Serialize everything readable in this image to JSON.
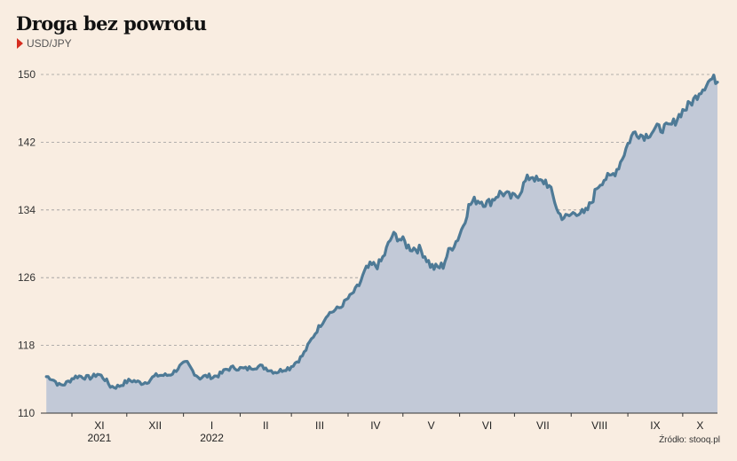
{
  "title": "Droga bez powrotu",
  "legend_label": "USD/JPY",
  "source": "Źródło: stooq.pl",
  "colors": {
    "line": "#4e7a96",
    "area": "#c2c9d7",
    "marker": "#d62d20",
    "background": "#f9ede1"
  },
  "chart_data": {
    "type": "area",
    "title": "Droga bez powrotu",
    "series": [
      {
        "name": "USD/JPY",
        "x": [
          "2021-10-18",
          "2021-10-25",
          "2021-11-01",
          "2021-11-08",
          "2021-11-15",
          "2021-11-22",
          "2021-11-29",
          "2021-12-06",
          "2021-12-13",
          "2021-12-20",
          "2021-12-27",
          "2022-01-03",
          "2022-01-10",
          "2022-01-17",
          "2022-01-24",
          "2022-01-31",
          "2022-02-07",
          "2022-02-14",
          "2022-02-21",
          "2022-02-28",
          "2022-03-07",
          "2022-03-14",
          "2022-03-21",
          "2022-03-28",
          "2022-04-04",
          "2022-04-11",
          "2022-04-18",
          "2022-04-25",
          "2022-05-02",
          "2022-05-09",
          "2022-05-16",
          "2022-05-23",
          "2022-05-30",
          "2022-06-06",
          "2022-06-13",
          "2022-06-20",
          "2022-06-27",
          "2022-07-04",
          "2022-07-11",
          "2022-07-18",
          "2022-07-25",
          "2022-08-01",
          "2022-08-08",
          "2022-08-15",
          "2022-08-22",
          "2022-08-29",
          "2022-09-05",
          "2022-09-12",
          "2022-09-19",
          "2022-09-26",
          "2022-10-03",
          "2022-10-10",
          "2022-10-17",
          "2022-10-20"
        ],
        "values": [
          114.2,
          113.4,
          114.0,
          114.3,
          114.6,
          113.2,
          113.5,
          113.7,
          113.9,
          114.4,
          115.0,
          115.8,
          114.3,
          114.1,
          115.3,
          115.1,
          115.6,
          115.2,
          115.1,
          115.1,
          117.0,
          119.2,
          122.0,
          122.3,
          124.5,
          126.5,
          128.0,
          130.5,
          130.5,
          129.1,
          127.8,
          127.2,
          130.5,
          134.2,
          135.2,
          135.3,
          135.8,
          136.1,
          138.0,
          137.5,
          133.5,
          133.6,
          133.2,
          136.9,
          137.5,
          140.5,
          142.9,
          143.3,
          143.2,
          144.7,
          145.6,
          148.4,
          149.0,
          149.2
        ],
        "minima": [
          113.0,
          112.8
        ],
        "maxima": [
          125.0,
          131.0,
          139.5,
          145.0
        ]
      }
    ],
    "x_tick_labels": [
      "XI",
      "XII",
      "I",
      "II",
      "III",
      "IV",
      "V",
      "VI",
      "VII",
      "VIII",
      "IX",
      "X"
    ],
    "x_tick_dates": [
      "2021-11-01",
      "2021-12-01",
      "2022-01-01",
      "2022-02-01",
      "2022-03-01",
      "2022-04-01",
      "2022-05-01",
      "2022-06-01",
      "2022-07-01",
      "2022-08-01",
      "2022-09-01",
      "2022-10-01"
    ],
    "x_year_labels": [
      {
        "label": "2021",
        "date": "2021-11-01"
      },
      {
        "label": "2022",
        "date": "2022-01-01"
      }
    ],
    "x_range": [
      "2021-10-15",
      "2022-10-20"
    ],
    "y_ticks": [
      110,
      118,
      126,
      134,
      142,
      150
    ],
    "ylim": [
      110,
      150
    ],
    "grid": "horizontal-dashed"
  }
}
